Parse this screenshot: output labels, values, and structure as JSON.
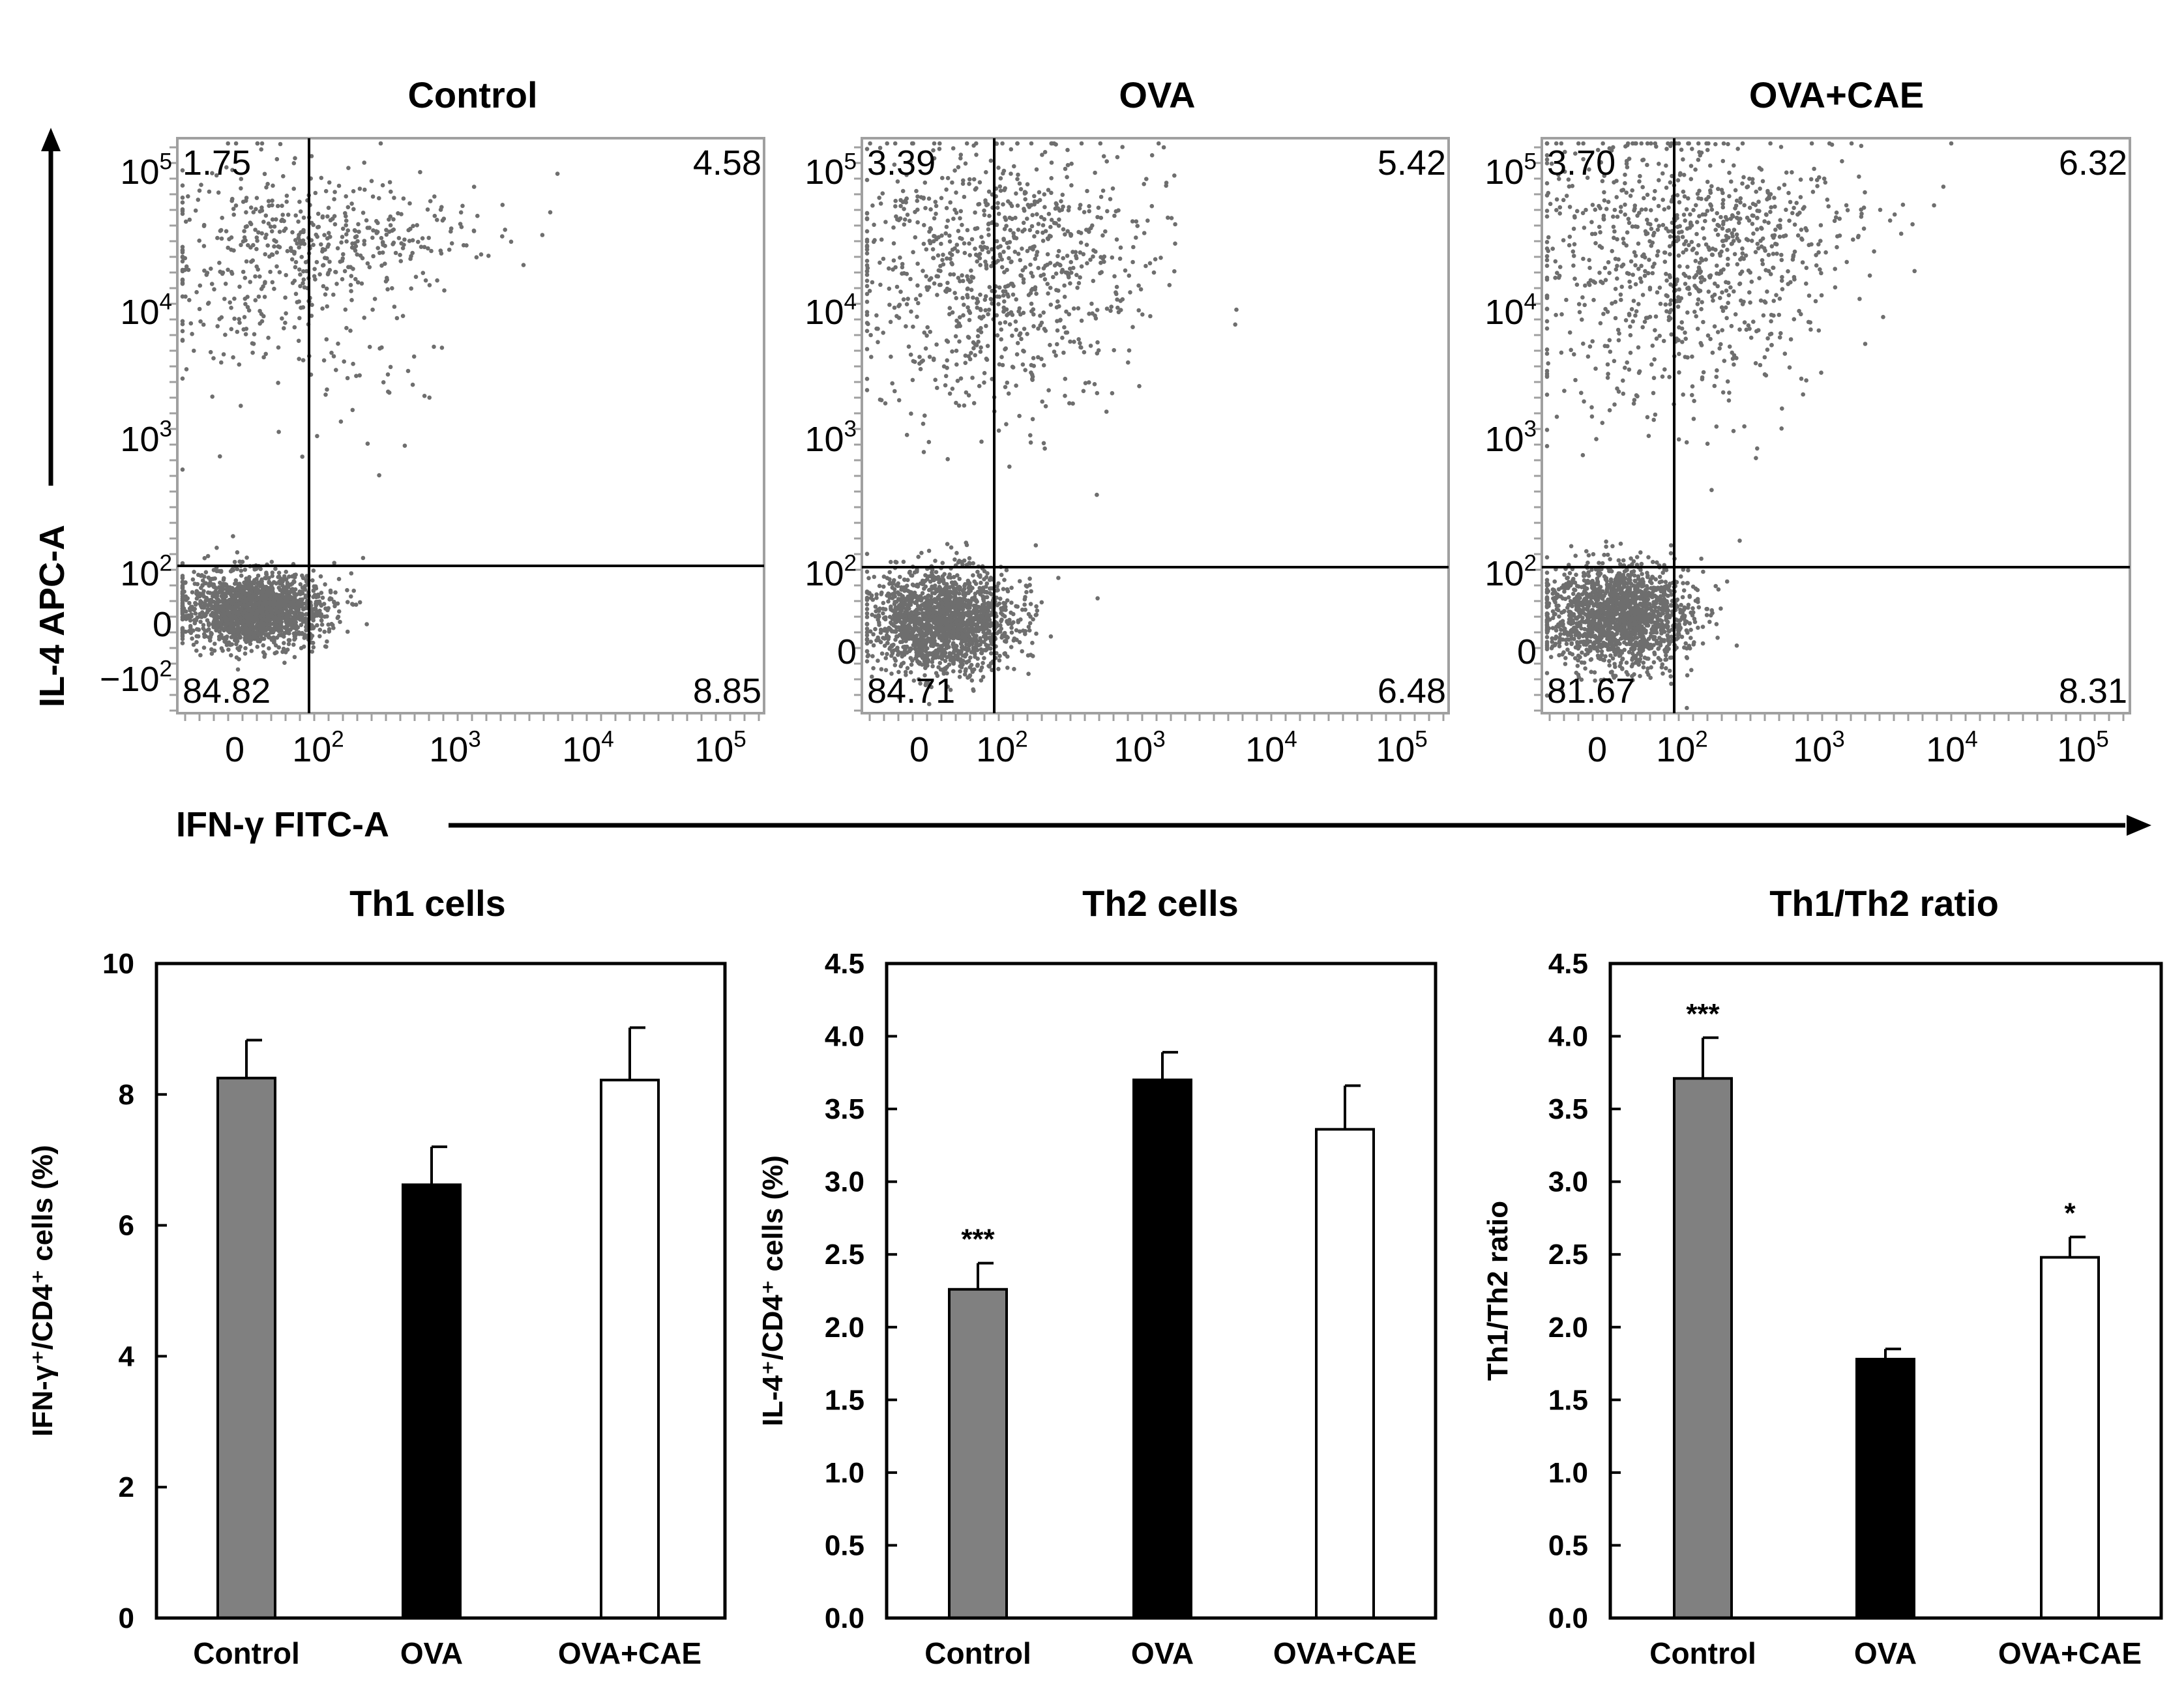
{
  "axis_labels": {
    "flow_y": "IL-4 APC-A",
    "flow_x": "IFN-γ FITC-A"
  },
  "chart_data": [
    {
      "type": "scatter",
      "subtype": "flow-cytometry-quadrant",
      "title": "Control",
      "x_ticks": [
        {
          "main": "0",
          "sup": ""
        },
        {
          "main": "10",
          "sup": "2"
        },
        {
          "main": "10",
          "sup": "3"
        },
        {
          "main": "10",
          "sup": "4"
        },
        {
          "main": "10",
          "sup": "5"
        }
      ],
      "y_ticks": [
        {
          "main": "10",
          "sup": "5"
        },
        {
          "main": "10",
          "sup": "4"
        },
        {
          "main": "10",
          "sup": "3"
        },
        {
          "main": "10",
          "sup": "2"
        },
        {
          "main": "0",
          "sup": ""
        },
        {
          "main": "−10",
          "sup": "2"
        }
      ],
      "quadrants": {
        "upper_left": "1.75",
        "upper_right": "4.58",
        "lower_left": "84.82",
        "lower_right": "8.85"
      },
      "gate": {
        "x": 100,
        "y": 100
      }
    },
    {
      "type": "scatter",
      "subtype": "flow-cytometry-quadrant",
      "title": "OVA",
      "x_ticks": [
        {
          "main": "0",
          "sup": ""
        },
        {
          "main": "10",
          "sup": "2"
        },
        {
          "main": "10",
          "sup": "3"
        },
        {
          "main": "10",
          "sup": "4"
        },
        {
          "main": "10",
          "sup": "5"
        }
      ],
      "y_ticks": [
        {
          "main": "10",
          "sup": "5"
        },
        {
          "main": "10",
          "sup": "4"
        },
        {
          "main": "10",
          "sup": "3"
        },
        {
          "main": "10",
          "sup": "2"
        },
        {
          "main": "0",
          "sup": ""
        }
      ],
      "quadrants": {
        "upper_left": "3.39",
        "upper_right": "5.42",
        "lower_left": "84.71",
        "lower_right": "6.48"
      },
      "gate": {
        "x": 100,
        "y": 100
      }
    },
    {
      "type": "scatter",
      "subtype": "flow-cytometry-quadrant",
      "title": "OVA+CAE",
      "x_ticks": [
        {
          "main": "0",
          "sup": ""
        },
        {
          "main": "10",
          "sup": "2"
        },
        {
          "main": "10",
          "sup": "3"
        },
        {
          "main": "10",
          "sup": "4"
        },
        {
          "main": "10",
          "sup": "5"
        }
      ],
      "y_ticks": [
        {
          "main": "10",
          "sup": "5"
        },
        {
          "main": "10",
          "sup": "4"
        },
        {
          "main": "10",
          "sup": "3"
        },
        {
          "main": "10",
          "sup": "2"
        },
        {
          "main": "0",
          "sup": ""
        }
      ],
      "quadrants": {
        "upper_left": "3.70",
        "upper_right": "6.32",
        "lower_left": "81.67",
        "lower_right": "8.31"
      },
      "gate": {
        "x": 100,
        "y": 100
      }
    },
    {
      "type": "bar",
      "title": "Th1 cells",
      "ylabel": "IFN-γ⁺/CD4⁺ cells (%)",
      "categories": [
        "Control",
        "OVA",
        "OVA+CAE"
      ],
      "values": [
        8.25,
        6.62,
        8.22
      ],
      "errors": [
        0.58,
        0.58,
        0.8
      ],
      "annotations": [
        "",
        "",
        ""
      ],
      "fills": [
        "#808080",
        "#000000",
        "#ffffff"
      ],
      "ylim": [
        0,
        10
      ],
      "yticks": [
        0,
        2,
        4,
        6,
        8,
        10
      ],
      "ytick_labels": [
        "0",
        "2",
        "4",
        "6",
        "8",
        "10"
      ]
    },
    {
      "type": "bar",
      "title": "Th2 cells",
      "ylabel": "IL-4⁺/CD4⁺ cells (%)",
      "categories": [
        "Control",
        "OVA",
        "OVA+CAE"
      ],
      "values": [
        2.26,
        3.7,
        3.36
      ],
      "errors": [
        0.18,
        0.19,
        0.3
      ],
      "annotations": [
        "***",
        "",
        ""
      ],
      "fills": [
        "#808080",
        "#000000",
        "#ffffff"
      ],
      "ylim": [
        0,
        4.5
      ],
      "yticks": [
        0,
        0.5,
        1,
        1.5,
        2,
        2.5,
        3,
        3.5,
        4,
        4.5
      ],
      "ytick_labels": [
        "0.0",
        "0.5",
        "1.0",
        "1.5",
        "2.0",
        "2.5",
        "3.0",
        "3.5",
        "4.0",
        "4.5"
      ]
    },
    {
      "type": "bar",
      "title": "Th1/Th2 ratio",
      "ylabel": "Th1/Th2 ratio",
      "categories": [
        "Control",
        "OVA",
        "OVA+CAE"
      ],
      "values": [
        3.71,
        1.78,
        2.48
      ],
      "errors": [
        0.28,
        0.07,
        0.14
      ],
      "annotations": [
        "***",
        "",
        "*"
      ],
      "fills": [
        "#808080",
        "#000000",
        "#ffffff"
      ],
      "ylim": [
        0,
        4.5
      ],
      "yticks": [
        0,
        0.5,
        1,
        1.5,
        2,
        2.5,
        3,
        3.5,
        4,
        4.5
      ],
      "ytick_labels": [
        "0.0",
        "0.5",
        "1.0",
        "1.5",
        "2.0",
        "2.5",
        "3.0",
        "3.5",
        "4.0",
        "4.5"
      ]
    }
  ]
}
